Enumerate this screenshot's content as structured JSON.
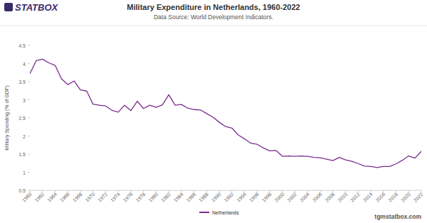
{
  "chart_data": {
    "type": "line",
    "logo": "STATBOX",
    "title": "Military Expenditure in Netherlands, 1960-2022",
    "subtitle": "Data Source: World Development Indicators.",
    "y_label": "Military Spending (% of GDP)",
    "footer": "tgmstatbox.com",
    "x": [
      1960,
      1961,
      1962,
      1963,
      1964,
      1965,
      1966,
      1967,
      1968,
      1969,
      1970,
      1971,
      1972,
      1973,
      1974,
      1975,
      1976,
      1977,
      1978,
      1979,
      1980,
      1981,
      1982,
      1983,
      1984,
      1985,
      1986,
      1987,
      1988,
      1989,
      1990,
      1991,
      1992,
      1993,
      1994,
      1995,
      1996,
      1997,
      1998,
      1999,
      2000,
      2001,
      2002,
      2003,
      2004,
      2005,
      2006,
      2007,
      2008,
      2009,
      2010,
      2011,
      2012,
      2013,
      2014,
      2015,
      2016,
      2017,
      2018,
      2019,
      2020,
      2021,
      2022
    ],
    "series": [
      {
        "name": "Netherlands",
        "color": "#7b2d8e",
        "values": [
          3.72,
          4.08,
          4.12,
          4.02,
          3.95,
          3.58,
          3.42,
          3.52,
          3.27,
          3.24,
          2.88,
          2.85,
          2.83,
          2.71,
          2.66,
          2.85,
          2.7,
          2.96,
          2.76,
          2.85,
          2.79,
          2.86,
          3.14,
          2.85,
          2.87,
          2.77,
          2.73,
          2.72,
          2.62,
          2.52,
          2.38,
          2.26,
          2.22,
          2.03,
          1.92,
          1.8,
          1.77,
          1.67,
          1.59,
          1.6,
          1.44,
          1.45,
          1.44,
          1.45,
          1.44,
          1.41,
          1.4,
          1.36,
          1.32,
          1.41,
          1.34,
          1.3,
          1.24,
          1.17,
          1.16,
          1.13,
          1.16,
          1.16,
          1.23,
          1.33,
          1.45,
          1.39,
          1.58
        ]
      }
    ],
    "xlim": [
      1960,
      2022
    ],
    "xticks": [
      1960,
      1962,
      1964,
      1966,
      1968,
      1970,
      1972,
      1974,
      1976,
      1978,
      1980,
      1982,
      1984,
      1986,
      1988,
      1990,
      1992,
      1994,
      1996,
      1998,
      2000,
      2002,
      2004,
      2006,
      2008,
      2010,
      2012,
      2014,
      2016,
      2018,
      2020,
      2022
    ],
    "ylim": [
      0.5,
      4.5
    ],
    "yticks": [
      0.5,
      1,
      1.5,
      2,
      2.5,
      3,
      3.5,
      4,
      4.5
    ],
    "grid": false,
    "legend": "bottom"
  }
}
